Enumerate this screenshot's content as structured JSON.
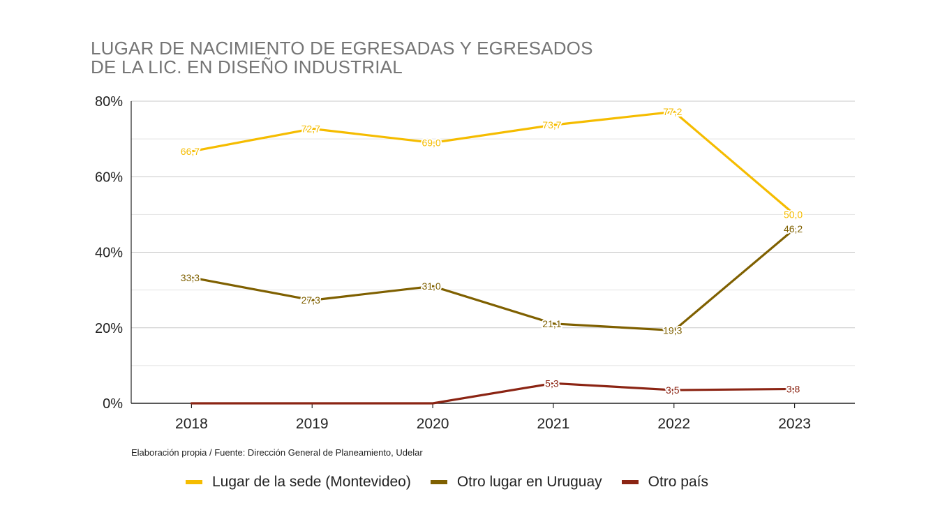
{
  "header": {
    "title_line1": "LUGAR DE NACIMIENTO DE EGRESADAS Y EGRESADOS",
    "title_line2": "DE LA LIC. EN DISEÑO INDUSTRIAL"
  },
  "source": "Elaboración propia / Fuente: Dirección General de Planeamiento, Udelar",
  "chart_data": {
    "type": "line",
    "title": "LUGAR DE NACIMIENTO DE EGRESADAS Y EGRESADOS DE LA LIC. EN DISEÑO INDUSTRIAL",
    "categories": [
      "2018",
      "2019",
      "2020",
      "2021",
      "2022",
      "2023"
    ],
    "ylim": [
      0,
      80
    ],
    "y_ticks": [
      0,
      20,
      40,
      60,
      80
    ],
    "y_tick_labels": [
      "0%",
      "20%",
      "40%",
      "60%",
      "80%"
    ],
    "grid": true,
    "legend_position": "bottom",
    "series": [
      {
        "name": "Lugar de la sede (Montevideo)",
        "color": "#F5BC00",
        "values": [
          66.7,
          72.7,
          69.0,
          73.7,
          77.2,
          50.0
        ],
        "labels": [
          "66,7",
          "72,7",
          "69,0",
          "73,7",
          "77,2",
          "50,0"
        ]
      },
      {
        "name": "Otro lugar en Uruguay",
        "color": "#7F6000",
        "values": [
          33.3,
          27.3,
          31.0,
          21.1,
          19.3,
          46.2
        ],
        "labels": [
          "33,3",
          "27,3",
          "31,0",
          "21,1",
          "19,3",
          "46,2"
        ]
      },
      {
        "name": "Otro país",
        "color": "#8B2413",
        "values": [
          0,
          0,
          0,
          5.3,
          3.5,
          3.8
        ],
        "labels": [
          "",
          "",
          "",
          "5,3",
          "3,5",
          "3,8"
        ]
      }
    ]
  }
}
